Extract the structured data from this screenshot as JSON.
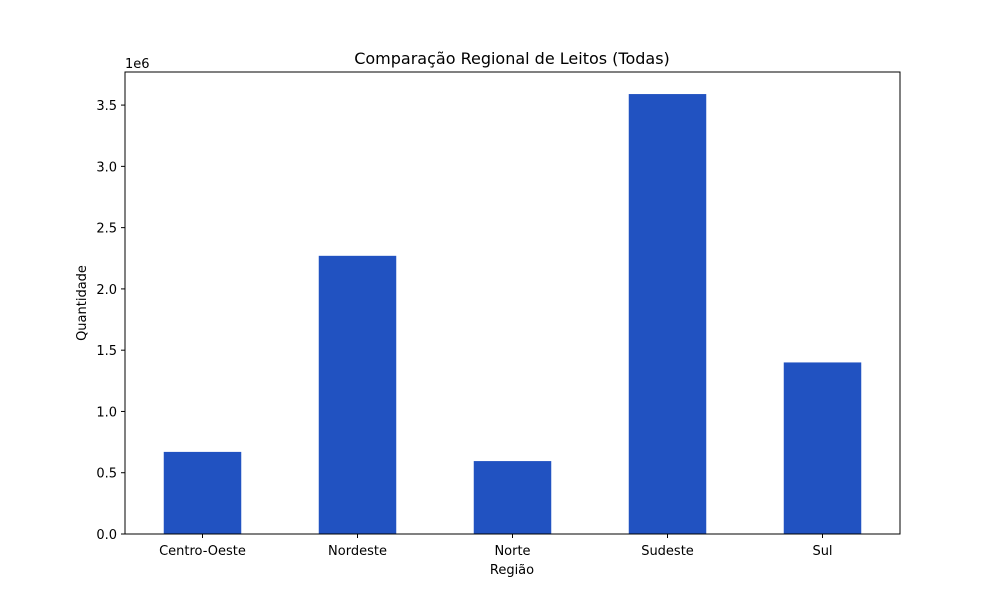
{
  "chart_data": {
    "type": "bar",
    "title": "Comparação Regional de Leitos (Todas)",
    "xlabel": "Região",
    "ylabel": "Quantidade",
    "y_offset_label": "1e6",
    "categories": [
      "Centro-Oeste",
      "Nordeste",
      "Norte",
      "Sudeste",
      "Sul"
    ],
    "values": [
      670000,
      2270000,
      595000,
      3590000,
      1400000
    ],
    "ylim": [
      0,
      3770000
    ],
    "yticks": [
      0,
      500000,
      1000000,
      1500000,
      2000000,
      2500000,
      3000000,
      3500000
    ],
    "ytick_labels": [
      "0.0",
      "0.5",
      "1.0",
      "1.5",
      "2.0",
      "2.5",
      "3.0",
      "3.5"
    ],
    "bar_color": "#2152c1",
    "grid": false,
    "legend": "none"
  }
}
